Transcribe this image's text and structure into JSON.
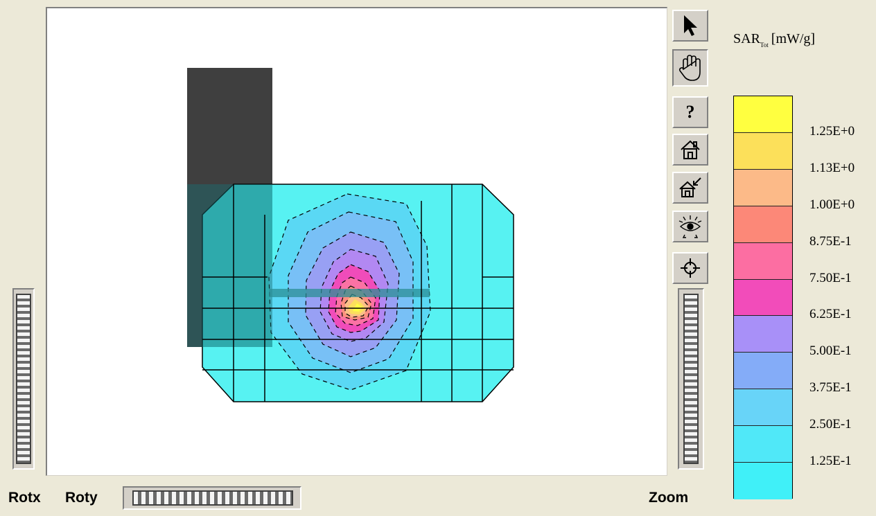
{
  "controls": {
    "rotx_label": "Rotx",
    "roty_label": "Roty",
    "zoom_label": "Zoom"
  },
  "toolbar": {
    "items": [
      {
        "name": "select-pointer",
        "icon": "arrow-pointer-icon"
      },
      {
        "name": "pan-hand",
        "icon": "hand-icon",
        "pressed": true
      },
      {
        "name": "help",
        "icon": "question-mark-icon",
        "label": "?"
      },
      {
        "name": "home-view",
        "icon": "house-icon"
      },
      {
        "name": "set-home-view",
        "icon": "house-arrow-icon"
      },
      {
        "name": "view-eye",
        "icon": "eye-icon"
      },
      {
        "name": "center-crosshair",
        "icon": "crosshair-icon"
      }
    ]
  },
  "legend": {
    "title_main": "SAR",
    "title_sub": "Tot",
    "title_unit": "[mW/g]",
    "colors": [
      "#ffff40",
      "#fce05a",
      "#fcba88",
      "#fc8878",
      "#fc6ea2",
      "#f24cba",
      "#a890f8",
      "#84acf8",
      "#68d4f8",
      "#50e8f8",
      "#40f0f8"
    ],
    "labels": [
      "1.25E+0",
      "1.13E+0",
      "1.00E+0",
      "8.75E-1",
      "7.50E-1",
      "6.25E-1",
      "5.00E-1",
      "3.75E-1",
      "2.50E-1",
      "1.25E-1"
    ]
  },
  "colors": {
    "phantom_cyan": "#40f0f0",
    "phone_dark": "#3f3f3f",
    "background": "#ece9d8"
  }
}
